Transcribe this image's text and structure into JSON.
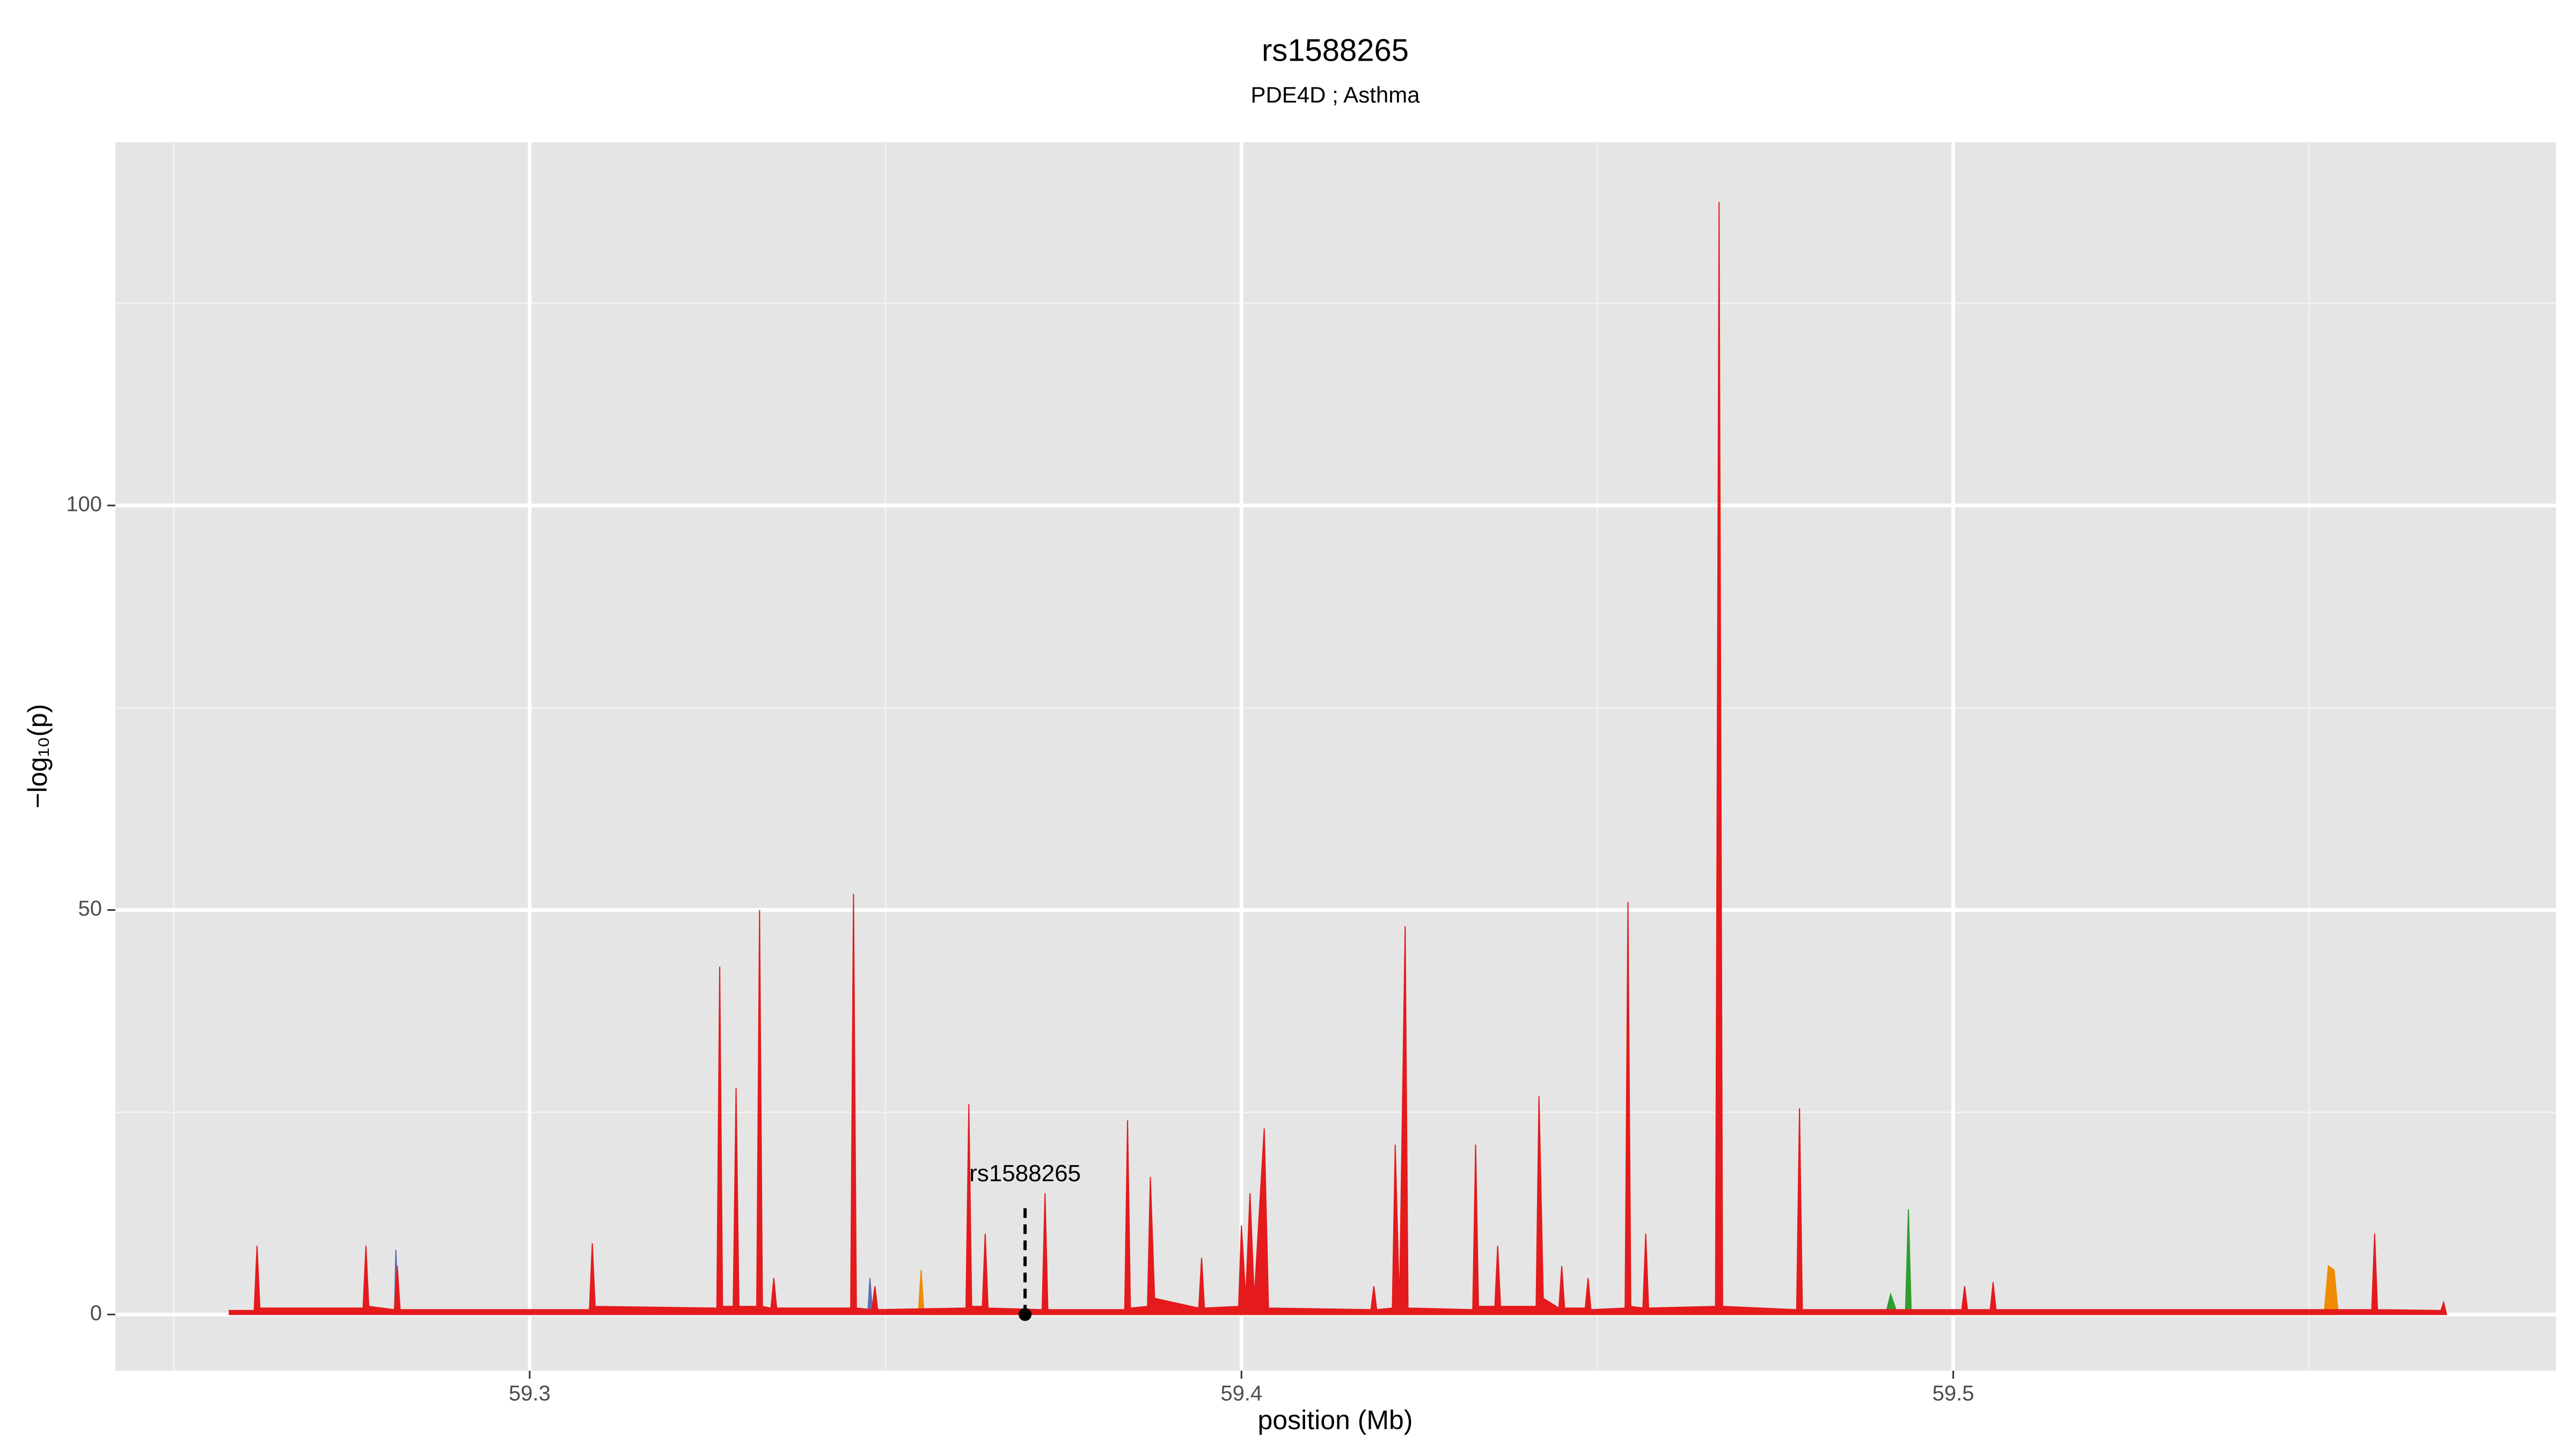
{
  "chart_data": {
    "type": "area",
    "title": "rs1588265",
    "subtitle": "PDE4D ; Asthma",
    "x_label": "position (Mb)",
    "y_label": "−log₁₀(p)",
    "xlim": [
      59.2418,
      59.5847
    ],
    "ylim": [
      -6.94,
      144.9
    ],
    "xticks": [
      59.3,
      59.4,
      59.5
    ],
    "yticks": [
      0,
      50,
      100
    ],
    "x_minor_ticks": [
      59.25,
      59.35,
      59.45,
      59.55
    ],
    "y_minor_ticks": [
      25,
      75,
      125
    ],
    "grid": true,
    "background": "#e5e5e5",
    "annotation": {
      "text": "rs1588265",
      "x": 59.3696,
      "y": 0
    },
    "series": [
      {
        "color": "#5b6fb5",
        "x": [
          59.281,
          59.2812,
          59.2816,
          59.3475,
          59.3478,
          59.3482
        ],
        "values": [
          0,
          8,
          0,
          0,
          4.5,
          0
        ]
      },
      {
        "color": "#f08a00",
        "x": [
          59.3546,
          59.355,
          59.3554,
          59.5521,
          59.5527,
          59.5535,
          59.5541
        ],
        "values": [
          0,
          5.5,
          0,
          0,
          6,
          5.5,
          0
        ]
      },
      {
        "color": "#2e9e2e",
        "x": [
          59.4905,
          59.4912,
          59.492,
          59.4933,
          59.4937,
          59.4941
        ],
        "values": [
          0,
          2.5,
          0.5,
          0.5,
          13,
          0
        ]
      },
      {
        "color": "#e41a1c",
        "x": [
          59.2578,
          59.2613,
          59.2617,
          59.2621,
          59.2766,
          59.277,
          59.2774,
          59.281,
          59.2814,
          59.2818,
          59.3084,
          59.3088,
          59.3092,
          59.3263,
          59.3267,
          59.3271,
          59.3286,
          59.329,
          59.3294,
          59.3319,
          59.3323,
          59.3327,
          59.3339,
          59.3343,
          59.3347,
          59.3451,
          59.3455,
          59.3459,
          59.3481,
          59.3485,
          59.3489,
          59.3613,
          59.3617,
          59.3621,
          59.3636,
          59.364,
          59.3644,
          59.372,
          59.3724,
          59.3728,
          59.3836,
          59.384,
          59.3844,
          59.3868,
          59.3872,
          59.3878,
          59.394,
          59.3944,
          59.3948,
          59.3996,
          59.4,
          59.4006,
          59.4012,
          59.4018,
          59.4032,
          59.4038,
          59.4182,
          59.4186,
          59.419,
          59.4212,
          59.4216,
          59.4222,
          59.423,
          59.4234,
          59.4325,
          59.4329,
          59.4333,
          59.4356,
          59.436,
          59.4364,
          59.4414,
          59.4418,
          59.4424,
          59.4446,
          59.445,
          59.4454,
          59.4483,
          59.4487,
          59.4491,
          59.4539,
          59.4543,
          59.4547,
          59.4564,
          59.4568,
          59.4572,
          59.4666,
          59.4671,
          59.4676,
          59.478,
          59.4784,
          59.4788,
          59.5012,
          59.5016,
          59.502,
          59.5052,
          59.5056,
          59.506,
          59.5588,
          59.5592,
          59.5596,
          59.5685,
          59.5689,
          59.5693
        ],
        "values": [
          0.5,
          0.5,
          8.5,
          0.8,
          0.8,
          8.5,
          1,
          0.6,
          6,
          0.6,
          0.6,
          8.8,
          1,
          0.8,
          43,
          1,
          1,
          28,
          1,
          1,
          50,
          1,
          0.8,
          4.5,
          0.8,
          0.8,
          52,
          0.8,
          0.6,
          3.5,
          0.6,
          0.8,
          26,
          1,
          1,
          10,
          0.8,
          0.6,
          15,
          0.6,
          0.6,
          24,
          0.8,
          1,
          17,
          2,
          0.8,
          7,
          0.8,
          1,
          11,
          2,
          15,
          2,
          23,
          0.8,
          0.6,
          3.5,
          0.6,
          0.8,
          21,
          1,
          48,
          0.8,
          0.6,
          21,
          1,
          1,
          8.5,
          1,
          1,
          27,
          2,
          0.8,
          6,
          0.8,
          0.8,
          4.5,
          0.6,
          0.8,
          51,
          1,
          0.8,
          10,
          0.8,
          1,
          137.5,
          1,
          0.6,
          25.5,
          0.6,
          0.6,
          3.5,
          0.6,
          0.6,
          4,
          0.6,
          0.6,
          10,
          0.6,
          0.5,
          1.5,
          0
        ]
      }
    ]
  }
}
